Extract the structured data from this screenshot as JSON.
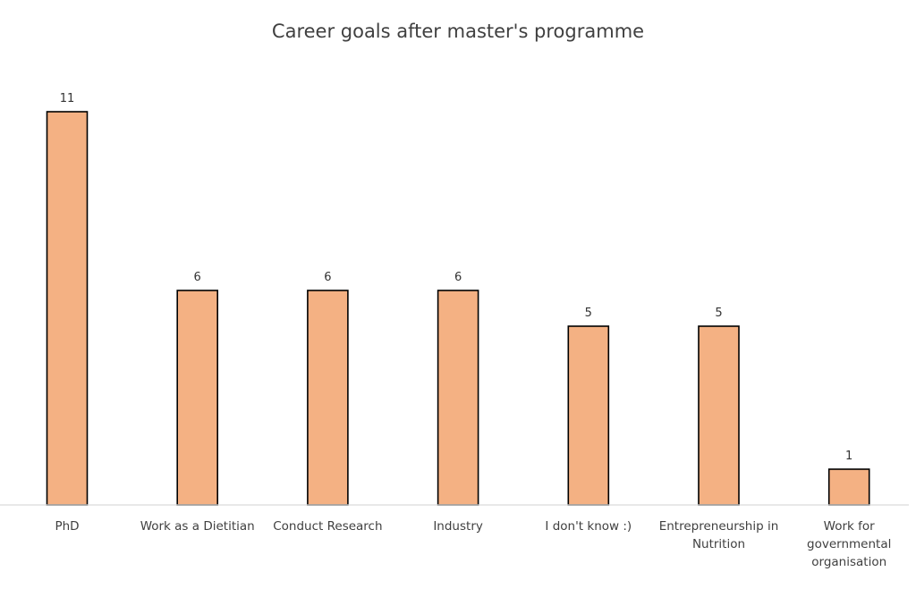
{
  "chart_data": {
    "type": "bar",
    "title": "Career goals after master's programme",
    "xlabel": "",
    "ylabel": "",
    "categories": [
      "PhD",
      "Work as a Dietitian",
      "Conduct Research",
      "Industry",
      "I don't know :)",
      "Entrepreneurship in Nutrition",
      "Work for governmental organisation"
    ],
    "category_lines": [
      [
        "PhD"
      ],
      [
        "Work as a Dietitian"
      ],
      [
        "Conduct Research"
      ],
      [
        "Industry"
      ],
      [
        "I don't know :)"
      ],
      [
        "Entrepreneurship in",
        "Nutrition"
      ],
      [
        "Work for",
        "governmental",
        "organisation"
      ]
    ],
    "values": [
      11,
      6,
      6,
      6,
      5,
      5,
      1
    ],
    "ylim": [
      0,
      12
    ],
    "grid": false,
    "legend": "none",
    "bar_color": "#F4B183",
    "bar_stroke": "#000000"
  }
}
